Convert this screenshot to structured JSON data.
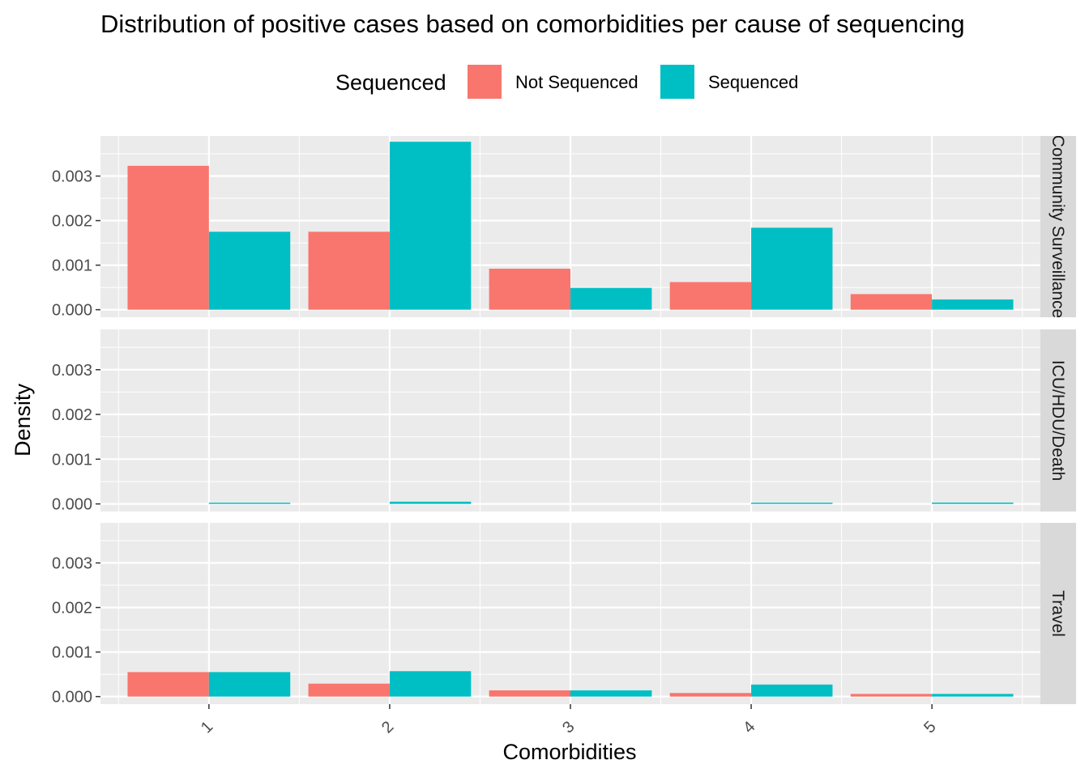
{
  "chart_data": {
    "type": "bar",
    "title": "Distribution of positive cases based on comorbidities per cause of sequencing",
    "xlabel": "Comorbidities",
    "ylabel": "Density",
    "ylim": [
      -0.00017,
      0.0039
    ],
    "yticks": [
      "0.000",
      "0.001",
      "0.002",
      "0.003"
    ],
    "categories": [
      "1",
      "2",
      "3",
      "4",
      "5"
    ],
    "legend": {
      "title": "Sequenced",
      "position": "top",
      "entries": [
        {
          "label": "Not Sequenced",
          "color": "#F8766D"
        },
        {
          "label": "Sequenced",
          "color": "#00BFC4"
        }
      ]
    },
    "facets": [
      {
        "label": "Community Surveillance",
        "series": [
          {
            "name": "Not Sequenced",
            "values": [
              0.00323,
              0.00175,
              0.00092,
              0.00062,
              0.00035
            ]
          },
          {
            "name": "Sequenced",
            "values": [
              0.00175,
              0.00377,
              0.00049,
              0.00184,
              0.00023
            ]
          }
        ]
      },
      {
        "label": "ICU/HDU/Death",
        "series": [
          {
            "name": "Not Sequenced",
            "values": [
              0,
              0,
              0,
              0,
              0
            ]
          },
          {
            "name": "Sequenced",
            "values": [
              2e-05,
              5e-05,
              0,
              2e-05,
              3e-05
            ]
          }
        ]
      },
      {
        "label": "Travel",
        "series": [
          {
            "name": "Not Sequenced",
            "values": [
              0.00055,
              0.00029,
              0.00014,
              8e-05,
              6e-05
            ]
          },
          {
            "name": "Sequenced",
            "values": [
              0.00055,
              0.00057,
              0.00014,
              0.00027,
              6e-05
            ]
          }
        ]
      }
    ],
    "grid": true
  }
}
